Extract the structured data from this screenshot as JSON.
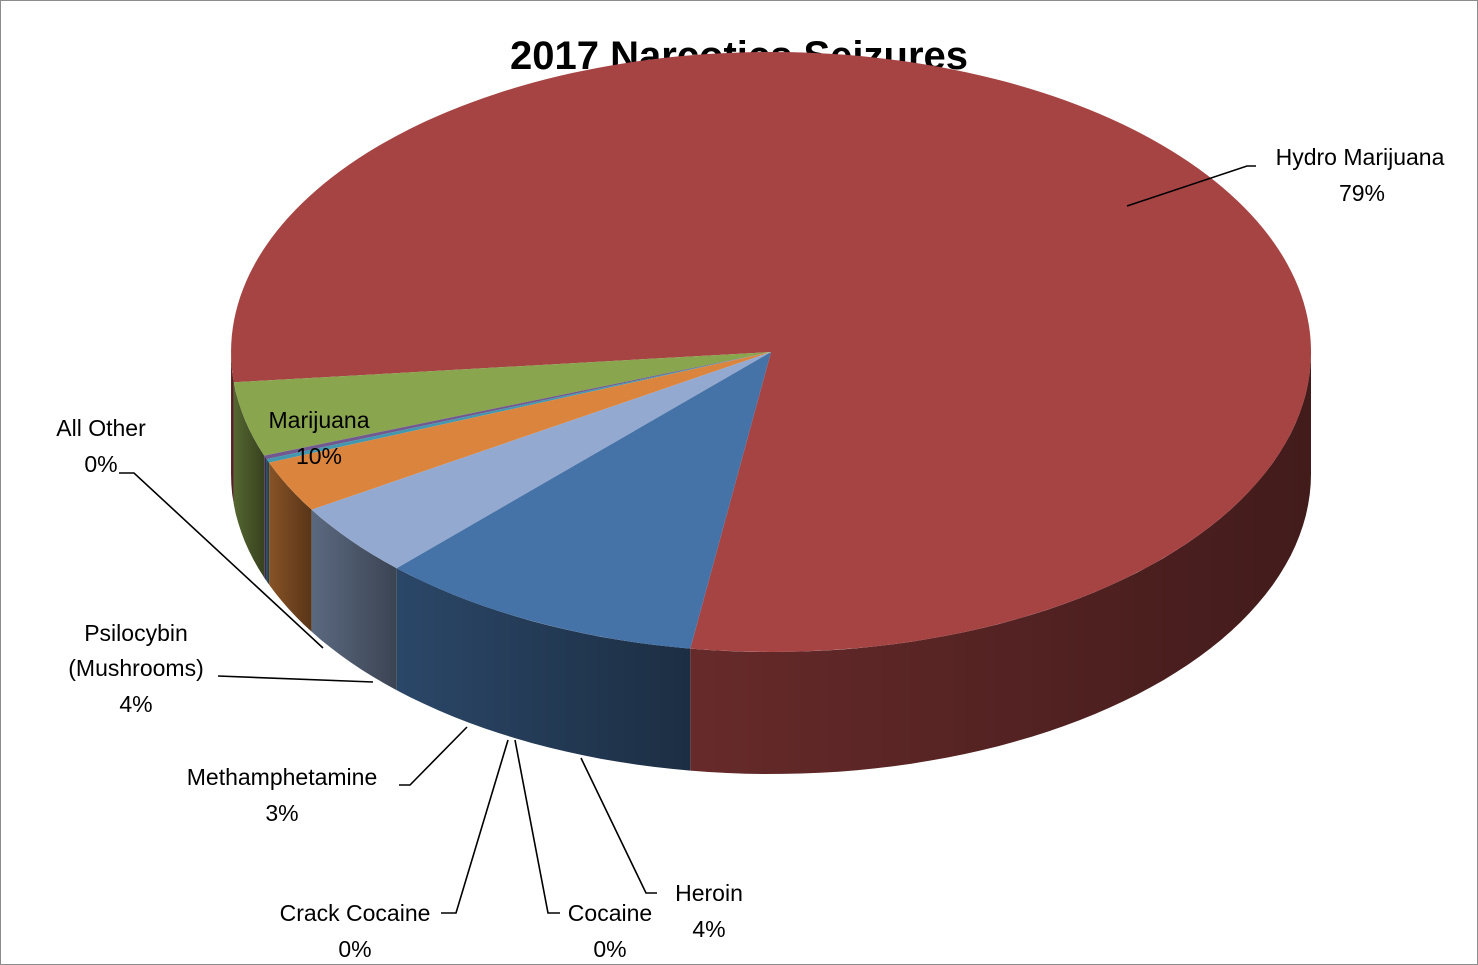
{
  "chart_data": {
    "type": "pie",
    "title": "2017 Narcotics Seizures",
    "three_d": true,
    "legend": "none",
    "slices": [
      {
        "name": "Hydro Marijuana",
        "value": 79,
        "label": "79%",
        "color": "#A64444"
      },
      {
        "name": "Heroin",
        "value": 4,
        "label": "4%",
        "color": "#89A54E"
      },
      {
        "name": "Cocaine",
        "value": 0.2,
        "label": "0%",
        "color": "#71588F"
      },
      {
        "name": "Crack Cocaine",
        "value": 0.2,
        "label": "0%",
        "color": "#4198AF"
      },
      {
        "name": "Methamphetamine",
        "value": 2.8,
        "label": "3%",
        "color": "#DB843D"
      },
      {
        "name": "Psilocybin (Mushrooms)",
        "value": 4,
        "label": "4%",
        "color": "#93A9CF"
      },
      {
        "name": "All Other",
        "value": 0,
        "label": "0%",
        "color": "#B9CD96"
      },
      {
        "name": "Marijuana",
        "value": 9.8,
        "label": "10%",
        "color": "#4572A7"
      }
    ]
  }
}
